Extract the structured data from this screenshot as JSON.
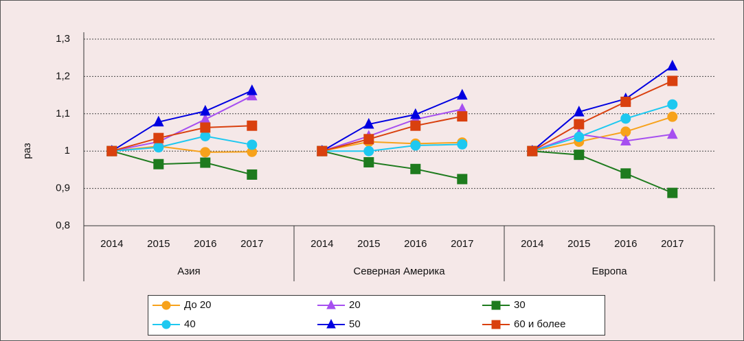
{
  "chart_data": {
    "type": "line",
    "ylabel": "раз",
    "groups": [
      "Азия",
      "Северная Америка",
      "Европа"
    ],
    "categories": [
      [
        "2014",
        "2015",
        "2016",
        "2017"
      ],
      [
        "2014",
        "2015",
        "2016",
        "2017"
      ],
      [
        "2014",
        "2015",
        "2016",
        "2017"
      ]
    ],
    "ylim": [
      0.8,
      1.3
    ],
    "yticks": [
      {
        "value": 0.8,
        "label": "0,8"
      },
      {
        "value": 0.9,
        "label": "0,9"
      },
      1,
      {
        "value": 1.1,
        "label": "1,1"
      },
      {
        "value": 1.2,
        "label": "1,2"
      },
      {
        "value": 1.3,
        "label": "1,3"
      }
    ],
    "grid": true,
    "series": [
      {
        "name": "До 20",
        "color": "#f7a21b",
        "marker": "circle",
        "values": [
          [
            1,
            1.013,
            0.997,
            0.998
          ],
          [
            1,
            1.025,
            1.02,
            1.023
          ],
          [
            1,
            1.025,
            1.052,
            1.092
          ]
        ]
      },
      {
        "name": "20",
        "color": "#a64ff0",
        "marker": "triangle",
        "values": [
          [
            1,
            1.025,
            1.085,
            1.148
          ],
          [
            1,
            1.04,
            1.085,
            1.112
          ],
          [
            1,
            1.045,
            1.027,
            1.045
          ]
        ]
      },
      {
        "name": "30",
        "color": "#1e7b1e",
        "marker": "square",
        "values": [
          [
            1,
            0.965,
            0.969,
            0.937
          ],
          [
            1,
            0.97,
            0.952,
            0.925
          ],
          [
            1,
            0.99,
            0.94,
            0.888
          ]
        ]
      },
      {
        "name": "40",
        "color": "#1ec8f0",
        "marker": "circle",
        "values": [
          [
            1,
            1.01,
            1.04,
            1.017
          ],
          [
            1,
            1.0,
            1.015,
            1.018
          ],
          [
            1,
            1.038,
            1.087,
            1.125
          ]
        ]
      },
      {
        "name": "50",
        "color": "#0000e0",
        "marker": "triangle",
        "values": [
          [
            1,
            1.078,
            1.107,
            1.162
          ],
          [
            1,
            1.072,
            1.098,
            1.15
          ],
          [
            1,
            1.105,
            1.14,
            1.228
          ]
        ]
      },
      {
        "name": "60 и более",
        "color": "#d9400e",
        "marker": "square",
        "values": [
          [
            1,
            1.035,
            1.063,
            1.068
          ],
          [
            1,
            1.032,
            1.068,
            1.093
          ],
          [
            1,
            1.072,
            1.132,
            1.188
          ]
        ]
      }
    ]
  }
}
